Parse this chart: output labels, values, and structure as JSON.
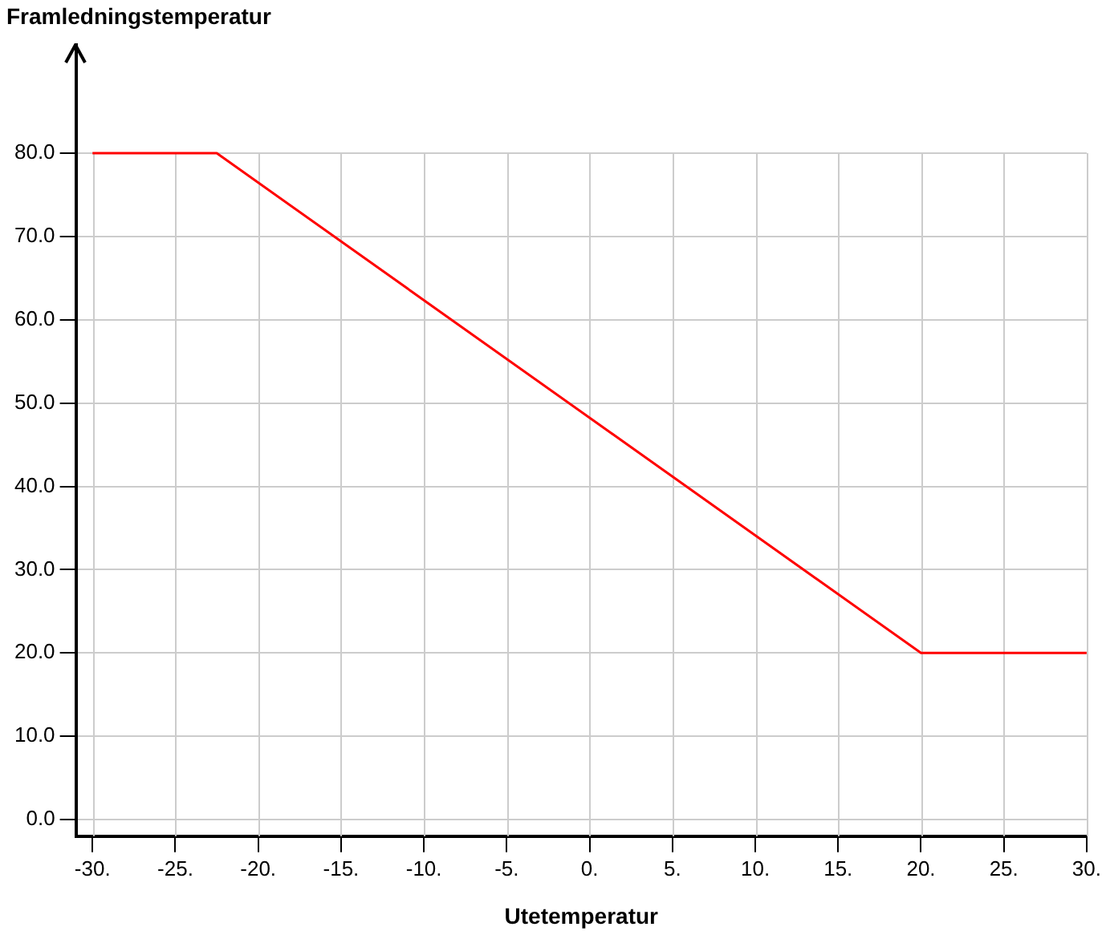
{
  "chart_data": {
    "type": "line",
    "xlabel": "Utetemperatur",
    "ylabel": "Framledningstemperatur",
    "x": [
      -30,
      -22.5,
      20,
      30
    ],
    "series": [
      {
        "color": "#ff0000",
        "values": [
          80,
          80,
          20,
          20
        ]
      }
    ],
    "xlim": [
      -31,
      30
    ],
    "ylim": [
      -2,
      93
    ],
    "xticks": [
      {
        "value": -30,
        "label": "-30."
      },
      {
        "value": -25,
        "label": "-25."
      },
      {
        "value": -20,
        "label": "-20."
      },
      {
        "value": -15,
        "label": "-15."
      },
      {
        "value": -10,
        "label": "-10."
      },
      {
        "value": -5,
        "label": "-5."
      },
      {
        "value": 0,
        "label": "0."
      },
      {
        "value": 5,
        "label": "5."
      },
      {
        "value": 10,
        "label": "10."
      },
      {
        "value": 15,
        "label": "15."
      },
      {
        "value": 20,
        "label": "20."
      },
      {
        "value": 25,
        "label": "25."
      },
      {
        "value": 30,
        "label": "30."
      }
    ],
    "yticks": [
      {
        "value": 0,
        "label": "0.0"
      },
      {
        "value": 10,
        "label": "10.0"
      },
      {
        "value": 20,
        "label": "20.0"
      },
      {
        "value": 30,
        "label": "30.0"
      },
      {
        "value": 40,
        "label": "40.0"
      },
      {
        "value": 50,
        "label": "50.0"
      },
      {
        "value": 60,
        "label": "60.0"
      },
      {
        "value": 70,
        "label": "70.0"
      },
      {
        "value": 80,
        "label": "80.0"
      }
    ],
    "grid": true,
    "legend": false,
    "marker": "none",
    "line_style": "solid"
  }
}
